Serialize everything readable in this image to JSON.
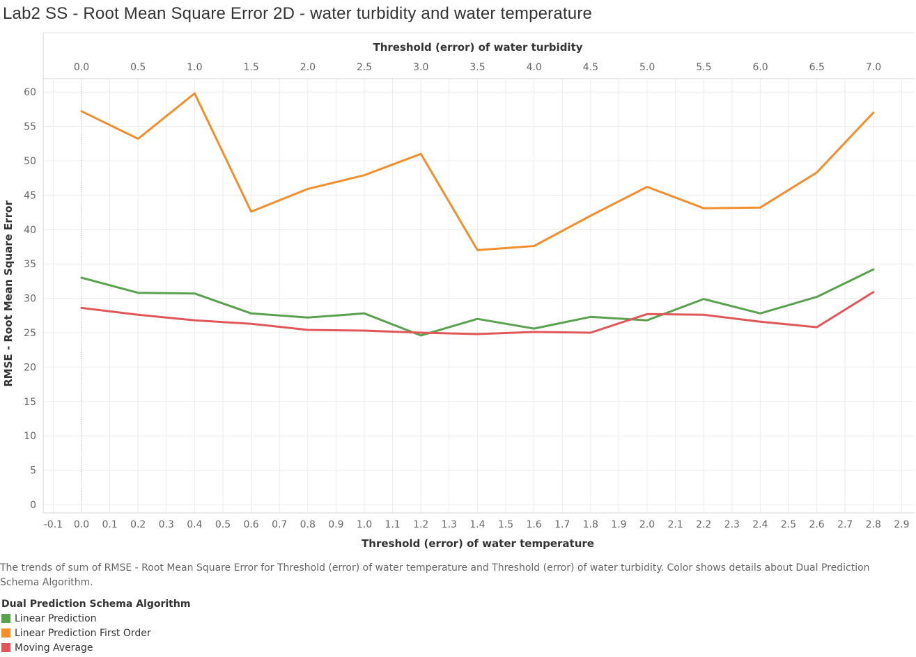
{
  "title": "Lab2 SS - Root Mean Square Error 2D - water turbidity and water temperature",
  "caption": "The trends of sum of RMSE - Root Mean Square Error for Threshold (error) of water temperature and Threshold (error) of water turbidity.  Color shows details about Dual Prediction Schema Algorithm.",
  "legend": {
    "title": "Dual Prediction Schema Algorithm",
    "items": [
      {
        "label": "Linear Prediction",
        "color": "#59a14f"
      },
      {
        "label": "Linear Prediction First Order",
        "color": "#f28e2b"
      },
      {
        "label": "Moving Average",
        "color": "#e15759"
      }
    ]
  },
  "chart_data": {
    "type": "line",
    "xlabel": "Threshold (error) of water temperature",
    "x2label": "Threshold (error) of water turbidity",
    "ylabel": "RMSE - Root Mean Square Error",
    "xlim": [
      -0.1,
      2.9
    ],
    "x2lim": [
      0.0,
      7.0
    ],
    "ylim": [
      0,
      62
    ],
    "xticks": [
      "-0.1",
      "0.0",
      "0.1",
      "0.2",
      "0.3",
      "0.4",
      "0.5",
      "0.6",
      "0.7",
      "0.8",
      "0.9",
      "1.0",
      "1.1",
      "1.2",
      "1.3",
      "1.4",
      "1.5",
      "1.6",
      "1.7",
      "1.8",
      "1.9",
      "2.0",
      "2.1",
      "2.2",
      "2.3",
      "2.4",
      "2.5",
      "2.6",
      "2.7",
      "2.8",
      "2.9"
    ],
    "x2ticks": [
      "0.0",
      "0.5",
      "1.0",
      "1.5",
      "2.0",
      "2.5",
      "3.0",
      "3.5",
      "4.0",
      "4.5",
      "5.0",
      "5.5",
      "6.0",
      "6.5",
      "7.0"
    ],
    "yticks": [
      "0",
      "5",
      "10",
      "15",
      "20",
      "25",
      "30",
      "35",
      "40",
      "45",
      "50",
      "55",
      "60"
    ],
    "grid": true,
    "x": [
      0.0,
      0.2,
      0.4,
      0.6,
      0.8,
      1.0,
      1.2,
      1.4,
      1.6,
      1.8,
      2.0,
      2.2,
      2.4,
      2.6,
      2.8
    ],
    "series": [
      {
        "name": "Linear Prediction",
        "color": "#59a14f",
        "values": [
          33.0,
          30.8,
          30.7,
          27.8,
          27.2,
          27.8,
          24.6,
          27.0,
          25.6,
          27.3,
          26.8,
          29.9,
          27.8,
          30.2,
          34.2
        ]
      },
      {
        "name": "Linear Prediction First Order",
        "color": "#f28e2b",
        "values": [
          57.2,
          53.2,
          59.8,
          42.6,
          45.9,
          47.9,
          51.0,
          37.0,
          37.6,
          42.0,
          46.2,
          43.1,
          43.2,
          48.3,
          57.0
        ]
      },
      {
        "name": "Moving Average",
        "color": "#e15759",
        "values": [
          28.6,
          27.6,
          26.8,
          26.3,
          25.4,
          25.3,
          25.0,
          24.8,
          25.1,
          25.0,
          27.7,
          27.6,
          26.6,
          25.8,
          30.9
        ]
      }
    ]
  }
}
